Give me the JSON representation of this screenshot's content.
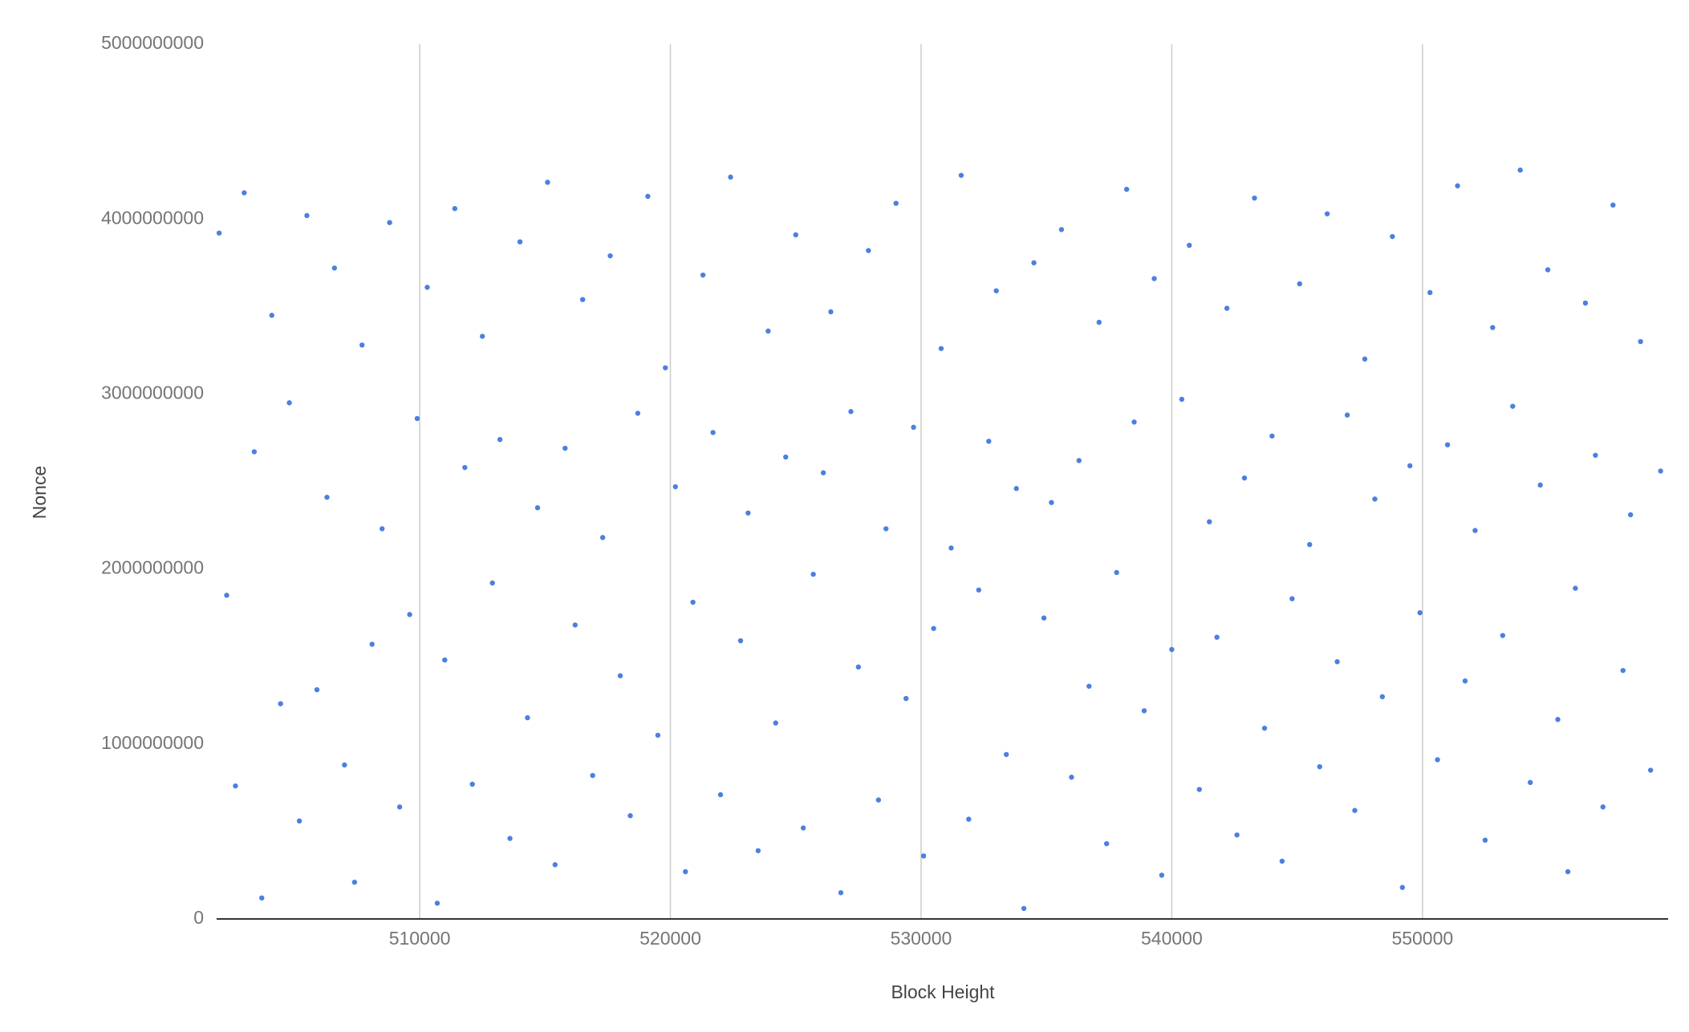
{
  "chart_data": {
    "type": "scatter",
    "x_label": "Block Height",
    "y_label": "Nonce",
    "xlim": [
      501900,
      559800
    ],
    "ylim": [
      0,
      5000000000
    ],
    "xticks": [
      510000,
      520000,
      530000,
      540000,
      550000
    ],
    "yticks": [
      0,
      1000000000,
      2000000000,
      3000000000,
      4000000000,
      5000000000
    ],
    "grid": "x",
    "color": "#4a80e0",
    "x": [
      502000,
      502300,
      502650,
      503000,
      503400,
      503700,
      504100,
      504450,
      504800,
      505200,
      505500,
      505900,
      506300,
      506600,
      507000,
      507400,
      507700,
      508100,
      508500,
      508800,
      509200,
      509600,
      509900,
      510300,
      510700,
      511000,
      511400,
      511800,
      512100,
      512500,
      512900,
      513200,
      513600,
      514000,
      514300,
      514700,
      515100,
      515400,
      515800,
      516200,
      516500,
      516900,
      517300,
      517600,
      518000,
      518400,
      518700,
      519100,
      519500,
      519800,
      520200,
      520600,
      520900,
      521300,
      521700,
      522000,
      522400,
      522800,
      523100,
      523500,
      523900,
      524200,
      524600,
      525000,
      525300,
      525700,
      526100,
      526400,
      526800,
      527200,
      527500,
      527900,
      528300,
      528600,
      529000,
      529400,
      529700,
      530100,
      530500,
      530800,
      531200,
      531600,
      531900,
      532300,
      532700,
      533000,
      533400,
      533800,
      534100,
      534500,
      534900,
      535200,
      535600,
      536000,
      536300,
      536700,
      537100,
      537400,
      537800,
      538200,
      538500,
      538900,
      539300,
      539600,
      540000,
      540400,
      540700,
      541100,
      541500,
      541800,
      542200,
      542600,
      542900,
      543300,
      543700,
      544000,
      544400,
      544800,
      545100,
      545500,
      545900,
      546200,
      546600,
      547000,
      547300,
      547700,
      548100,
      548400,
      548800,
      549200,
      549500,
      549900,
      550300,
      550600,
      551000,
      551400,
      551700,
      552100,
      552500,
      552800,
      553200,
      553600,
      553900,
      554300,
      554700,
      555000,
      555400,
      555800,
      556100,
      556500,
      556900,
      557200,
      557600,
      558000,
      558300,
      558700,
      559100,
      559500
    ],
    "values": [
      3920000000,
      1850000000,
      760000000,
      4150000000,
      2670000000,
      120000000,
      3450000000,
      1230000000,
      2950000000,
      560000000,
      4020000000,
      1310000000,
      2410000000,
      3720000000,
      880000000,
      210000000,
      3280000000,
      1570000000,
      2230000000,
      3980000000,
      640000000,
      1740000000,
      2860000000,
      3610000000,
      90000000,
      1480000000,
      4060000000,
      2580000000,
      770000000,
      3330000000,
      1920000000,
      2740000000,
      460000000,
      3870000000,
      1150000000,
      2350000000,
      4210000000,
      310000000,
      2690000000,
      1680000000,
      3540000000,
      820000000,
      2180000000,
      3790000000,
      1390000000,
      590000000,
      2890000000,
      4130000000,
      1050000000,
      3150000000,
      2470000000,
      270000000,
      1810000000,
      3680000000,
      2780000000,
      710000000,
      4240000000,
      1590000000,
      2320000000,
      390000000,
      3360000000,
      1120000000,
      2640000000,
      3910000000,
      520000000,
      1970000000,
      2550000000,
      3470000000,
      150000000,
      2900000000,
      1440000000,
      3820000000,
      680000000,
      2230000000,
      4090000000,
      1260000000,
      2810000000,
      360000000,
      1660000000,
      3260000000,
      2120000000,
      4250000000,
      570000000,
      1880000000,
      2730000000,
      3590000000,
      940000000,
      2460000000,
      60000000,
      3750000000,
      1720000000,
      2380000000,
      3940000000,
      810000000,
      2620000000,
      1330000000,
      3410000000,
      430000000,
      1980000000,
      4170000000,
      2840000000,
      1190000000,
      3660000000,
      250000000,
      1540000000,
      2970000000,
      3850000000,
      740000000,
      2270000000,
      1610000000,
      3490000000,
      480000000,
      2520000000,
      4120000000,
      1090000000,
      2760000000,
      330000000,
      1830000000,
      3630000000,
      2140000000,
      870000000,
      4030000000,
      1470000000,
      2880000000,
      620000000,
      3200000000,
      2400000000,
      1270000000,
      3900000000,
      180000000,
      2590000000,
      1750000000,
      3580000000,
      910000000,
      2710000000,
      4190000000,
      1360000000,
      2220000000,
      450000000,
      3380000000,
      1620000000,
      2930000000,
      4280000000,
      780000000,
      2480000000,
      3710000000,
      1140000000,
      270000000,
      1890000000,
      3520000000,
      2650000000,
      640000000,
      4080000000,
      1420000000,
      2310000000,
      3300000000,
      850000000,
      2560000000
    ]
  }
}
